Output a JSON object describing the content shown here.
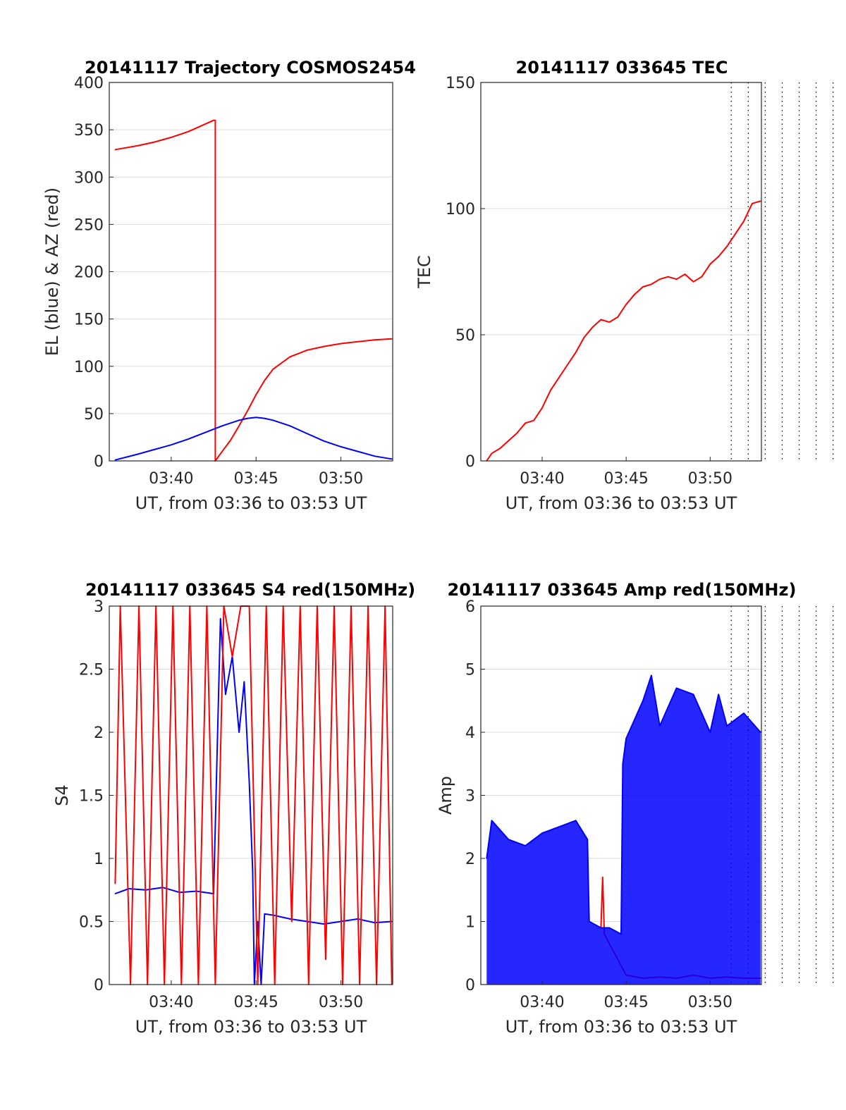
{
  "chart_data": [
    {
      "type": "line",
      "title": "20141117 Trajectory COSMOS2454",
      "xlabel": "UT, from 03:36 to 03:53 UT",
      "ylabel": "EL (blue) & AZ (red)",
      "xlim": [
        "03:36:00",
        "03:53:00"
      ],
      "ylim": [
        0,
        400
      ],
      "y_ticks": [
        "0",
        "50",
        "100",
        "150",
        "200",
        "250",
        "300",
        "350",
        "400"
      ],
      "x_ticks": [
        "03:40",
        "03:45",
        "03:50"
      ],
      "x_gridlines_minutes": [
        37,
        38,
        39,
        40,
        41,
        42,
        43,
        44,
        45,
        46,
        47,
        48,
        49,
        50,
        51,
        52
      ],
      "grid": "vertical dotted every minute, horizontal solid at y ticks",
      "series": [
        {
          "color": "#ff0000",
          "x_minutes_after_0336": [
            0.7,
            2.0,
            3.0,
            4.0,
            5.0,
            5.5,
            6.0,
            6.5,
            6.6,
            6.6,
            7.0,
            7.5,
            8.0,
            8.5,
            9.0,
            9.5,
            10.0,
            11.0,
            12.0,
            13.0,
            14.0,
            15.0,
            16.0,
            17.0
          ],
          "values": [
            329,
            333,
            337,
            342,
            348,
            352,
            356,
            360,
            360,
            0,
            10,
            22,
            37,
            53,
            70,
            85,
            97,
            110,
            117,
            121,
            124,
            126,
            128,
            129
          ]
        },
        {
          "color": "#0000ff",
          "x_minutes_after_0336": [
            0.7,
            2.0,
            3.0,
            4.0,
            5.0,
            6.0,
            7.0,
            8.0,
            8.5,
            9.0,
            9.5,
            10.0,
            11.0,
            12.0,
            13.0,
            14.0,
            15.0,
            16.0,
            17.0
          ],
          "values": [
            1,
            7,
            12,
            17,
            23,
            30,
            37,
            43,
            45,
            46,
            45,
            43,
            37,
            29,
            21,
            15,
            10,
            5,
            2
          ]
        }
      ]
    },
    {
      "type": "line",
      "title": "20141117 033645 TEC",
      "xlabel": "UT, from 03:36 to 03:53 UT",
      "ylabel": "TEC",
      "xlim": [
        "03:36:00",
        "03:53:00"
      ],
      "ylim": [
        0,
        150
      ],
      "y_ticks": [
        "0",
        "50",
        "100",
        "150"
      ],
      "x_ticks": [
        "03:40",
        "03:45",
        "03:50"
      ],
      "series": [
        {
          "color": "#ff0000",
          "x_minutes_after_0336": [
            0.7,
            1.0,
            1.5,
            2.0,
            2.5,
            3.0,
            3.5,
            4.0,
            4.5,
            5.0,
            5.5,
            6.0,
            6.5,
            7.0,
            7.5,
            8.0,
            8.5,
            9.0,
            9.5,
            10.0,
            10.5,
            11.0,
            11.5,
            12.0,
            12.5,
            13.0,
            13.5,
            14.0,
            14.5,
            15.0,
            15.5,
            16.0,
            16.5,
            17.0
          ],
          "values": [
            0,
            3,
            5,
            8,
            11,
            15,
            16,
            21,
            28,
            33,
            38,
            43,
            49,
            53,
            56,
            55,
            57,
            62,
            66,
            69,
            70,
            72,
            73,
            72,
            74,
            71,
            73,
            78,
            81,
            85,
            90,
            95,
            102,
            103
          ]
        }
      ]
    },
    {
      "type": "line",
      "title": "20141117 033645 S4 red(150MHz)",
      "xlabel": "UT, from 03:36 to 03:53 UT",
      "ylabel": "S4",
      "xlim": [
        "03:36:00",
        "03:53:00"
      ],
      "ylim": [
        0,
        3
      ],
      "y_ticks": [
        "0",
        "0.5",
        "1",
        "1.5",
        "2",
        "2.5",
        "3"
      ],
      "x_ticks": [
        "03:40",
        "03:45",
        "03:50"
      ],
      "series": [
        {
          "color": "#0000ff",
          "x_minutes_after_0336": [
            0.7,
            1.5,
            2.5,
            3.5,
            4.5,
            5.5,
            6.5,
            6.9,
            7.2,
            7.6,
            8.0,
            8.3,
            8.6,
            8.8,
            8.9,
            9.1,
            9.3,
            9.5,
            10.0,
            11.0,
            12.0,
            13.0,
            14.0,
            15.0,
            16.0,
            17.0
          ],
          "values": [
            0.72,
            0.76,
            0.75,
            0.77,
            0.73,
            0.74,
            0.72,
            2.9,
            2.3,
            2.6,
            2.0,
            2.4,
            1.6,
            0.9,
            0.0,
            0.5,
            0.0,
            0.56,
            0.55,
            0.52,
            0.5,
            0.48,
            0.5,
            0.52,
            0.49,
            0.5
          ]
        },
        {
          "color": "#ff0000",
          "x_minutes_after_0336": [
            0.7,
            1.0,
            1.6,
            2.1,
            2.6,
            3.1,
            3.6,
            4.1,
            4.6,
            5.1,
            5.6,
            6.1,
            6.6,
            7.1,
            7.6,
            8.1,
            8.6,
            9.1,
            9.6,
            10.1,
            10.6,
            11.1,
            11.6,
            12.1,
            12.6,
            13.1,
            13.6,
            14.1,
            14.6,
            15.1,
            15.6,
            16.1,
            16.6,
            17.0
          ],
          "values": [
            0.8,
            3.0,
            0.0,
            3.0,
            0.0,
            3.0,
            0.0,
            3.0,
            0.0,
            3.0,
            0.0,
            3.0,
            0.0,
            3.0,
            2.6,
            3.0,
            3.0,
            0.0,
            3.0,
            0.0,
            3.0,
            0.5,
            3.0,
            0.0,
            3.0,
            0.2,
            3.0,
            0.0,
            3.0,
            0.0,
            3.0,
            0.0,
            3.0,
            0.0
          ]
        }
      ]
    },
    {
      "type": "line",
      "title": "20141117 033645 Amp red(150MHz)",
      "xlabel": "UT, from 03:36 to 03:53 UT",
      "ylabel": "Amp",
      "xlim": [
        "03:36:00",
        "03:53:00"
      ],
      "ylim": [
        0,
        6
      ],
      "y_ticks": [
        "0",
        "1",
        "2",
        "3",
        "4",
        "5",
        "6"
      ],
      "x_ticks": [
        "03:40",
        "03:45",
        "03:50"
      ],
      "series": [
        {
          "color": "#ff0000",
          "x_minutes_after_0336": [
            7.5,
            7.6,
            7.7,
            9.0,
            10.0,
            11.0,
            12.0,
            13.0,
            14.0,
            15.0,
            16.0,
            17.0
          ],
          "values": [
            0.9,
            1.7,
            0.8,
            0.15,
            0.1,
            0.12,
            0.1,
            0.15,
            0.1,
            0.12,
            0.1,
            0.1
          ]
        },
        {
          "color": "#0000ff",
          "note_envelope": "upper",
          "x_minutes_after_0336": [
            0.7,
            1.0,
            2.0,
            3.0,
            4.0,
            5.0,
            6.0,
            6.7,
            6.8,
            7.5,
            8.0,
            8.7,
            8.8,
            9.0,
            10.0,
            10.5,
            11.0,
            12.0,
            13.0,
            14.0,
            14.5,
            15.0,
            16.0,
            17.0
          ],
          "values": [
            2.0,
            2.6,
            2.3,
            2.2,
            2.4,
            2.5,
            2.6,
            2.3,
            1.0,
            0.9,
            0.9,
            0.8,
            3.5,
            3.9,
            4.5,
            4.9,
            4.1,
            4.7,
            4.6,
            4.0,
            4.6,
            4.1,
            4.3,
            4.0
          ]
        }
      ]
    }
  ]
}
